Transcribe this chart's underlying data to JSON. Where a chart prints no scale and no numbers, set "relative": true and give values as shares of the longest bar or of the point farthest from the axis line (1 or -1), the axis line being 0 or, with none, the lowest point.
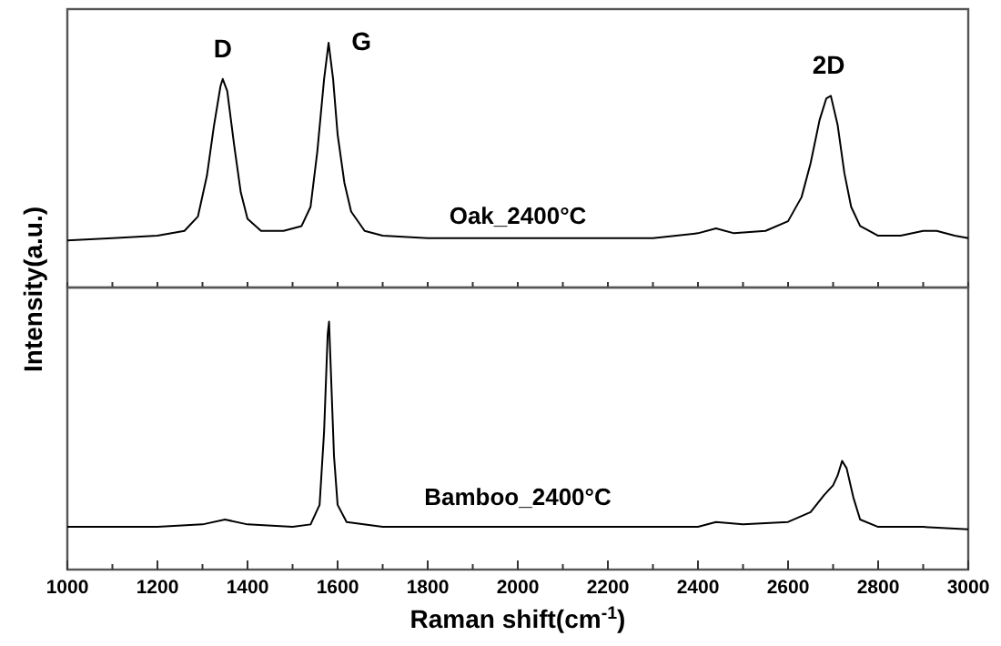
{
  "chart_data": [
    {
      "type": "line",
      "relative": true,
      "tick_labels": false,
      "ylabel": "Intensity(a.u.)",
      "xlim": [
        1000,
        3000
      ],
      "xticks": [
        {
          "value": 1000,
          "label": null
        },
        {
          "value": 1100,
          "label": null
        },
        {
          "value": 1200,
          "label": null
        },
        {
          "value": 1300,
          "label": null
        },
        {
          "value": 1400,
          "label": null
        },
        {
          "value": 1500,
          "label": null
        },
        {
          "value": 1600,
          "label": null
        },
        {
          "value": 1700,
          "label": null
        },
        {
          "value": 1800,
          "label": null
        },
        {
          "value": 1900,
          "label": null
        },
        {
          "value": 2000,
          "label": null
        },
        {
          "value": 2100,
          "label": null
        },
        {
          "value": 2200,
          "label": null
        },
        {
          "value": 2300,
          "label": null
        },
        {
          "value": 2400,
          "label": null
        },
        {
          "value": 2500,
          "label": null
        },
        {
          "value": 2600,
          "label": null
        },
        {
          "value": 2700,
          "label": null
        },
        {
          "value": 2800,
          "label": null
        },
        {
          "value": 2900,
          "label": null
        },
        {
          "value": 3000,
          "label": null
        }
      ],
      "annotations": [
        {
          "text": "D",
          "x": 1345,
          "y": 0.85
        },
        {
          "text": "G",
          "x": 1580,
          "y": 1
        },
        {
          "text": "2D",
          "x": 2690,
          "y": 0.78
        }
      ],
      "series": [
        {
          "name": "Oak_2400°C",
          "color": "#000000",
          "x": [
            1000,
            1100,
            1200,
            1260,
            1290,
            1310,
            1325,
            1340,
            1345,
            1355,
            1370,
            1385,
            1400,
            1430,
            1480,
            1520,
            1540,
            1555,
            1570,
            1580,
            1590,
            1600,
            1615,
            1630,
            1660,
            1700,
            1800,
            1900,
            2000,
            2100,
            2200,
            2300,
            2400,
            2440,
            2480,
            2550,
            2600,
            2630,
            2650,
            2670,
            2685,
            2695,
            2710,
            2725,
            2740,
            2760,
            2800,
            2850,
            2900,
            2930,
            2970,
            3000
          ],
          "values": [
            0.18,
            0.19,
            0.2,
            0.22,
            0.28,
            0.45,
            0.65,
            0.82,
            0.85,
            0.8,
            0.58,
            0.38,
            0.27,
            0.22,
            0.22,
            0.24,
            0.32,
            0.55,
            0.85,
            1,
            0.85,
            0.62,
            0.42,
            0.3,
            0.22,
            0.2,
            0.19,
            0.19,
            0.19,
            0.19,
            0.19,
            0.19,
            0.21,
            0.23,
            0.21,
            0.22,
            0.26,
            0.36,
            0.5,
            0.68,
            0.77,
            0.78,
            0.66,
            0.46,
            0.32,
            0.24,
            0.2,
            0.2,
            0.22,
            0.22,
            0.2,
            0.19
          ]
        }
      ]
    },
    {
      "type": "line",
      "relative": true,
      "tick_labels": "x",
      "xlabel": "Raman shift(cm$^{-1}$)",
      "xlim": [
        1000,
        3000
      ],
      "xticks": [
        1000,
        {
          "value": 1100,
          "label": null
        },
        1200,
        {
          "value": 1300,
          "label": null
        },
        1400,
        {
          "value": 1500,
          "label": null
        },
        1600,
        {
          "value": 1700,
          "label": null
        },
        1800,
        {
          "value": 1900,
          "label": null
        },
        2000,
        {
          "value": 2100,
          "label": null
        },
        2200,
        {
          "value": 2300,
          "label": null
        },
        2400,
        {
          "value": 2500,
          "label": null
        },
        2600,
        {
          "value": 2700,
          "label": null
        },
        2800,
        {
          "value": 2900,
          "label": null
        },
        3000
      ],
      "series": [
        {
          "name": "Bamboo_2400°C",
          "color": "#000000",
          "x": [
            1000,
            1200,
            1300,
            1350,
            1400,
            1500,
            1540,
            1560,
            1570,
            1578,
            1581,
            1585,
            1592,
            1600,
            1620,
            1700,
            1800,
            1900,
            2000,
            2100,
            2200,
            2300,
            2400,
            2440,
            2500,
            2600,
            2650,
            2680,
            2700,
            2710,
            2720,
            2730,
            2745,
            2760,
            2800,
            2900,
            3000
          ],
          "values": [
            0.16,
            0.16,
            0.17,
            0.19,
            0.17,
            0.16,
            0.17,
            0.25,
            0.55,
            0.95,
            1,
            0.8,
            0.45,
            0.25,
            0.18,
            0.16,
            0.16,
            0.16,
            0.16,
            0.16,
            0.16,
            0.16,
            0.16,
            0.18,
            0.17,
            0.18,
            0.22,
            0.29,
            0.33,
            0.37,
            0.43,
            0.4,
            0.28,
            0.19,
            0.16,
            0.16,
            0.15
          ]
        }
      ]
    }
  ]
}
